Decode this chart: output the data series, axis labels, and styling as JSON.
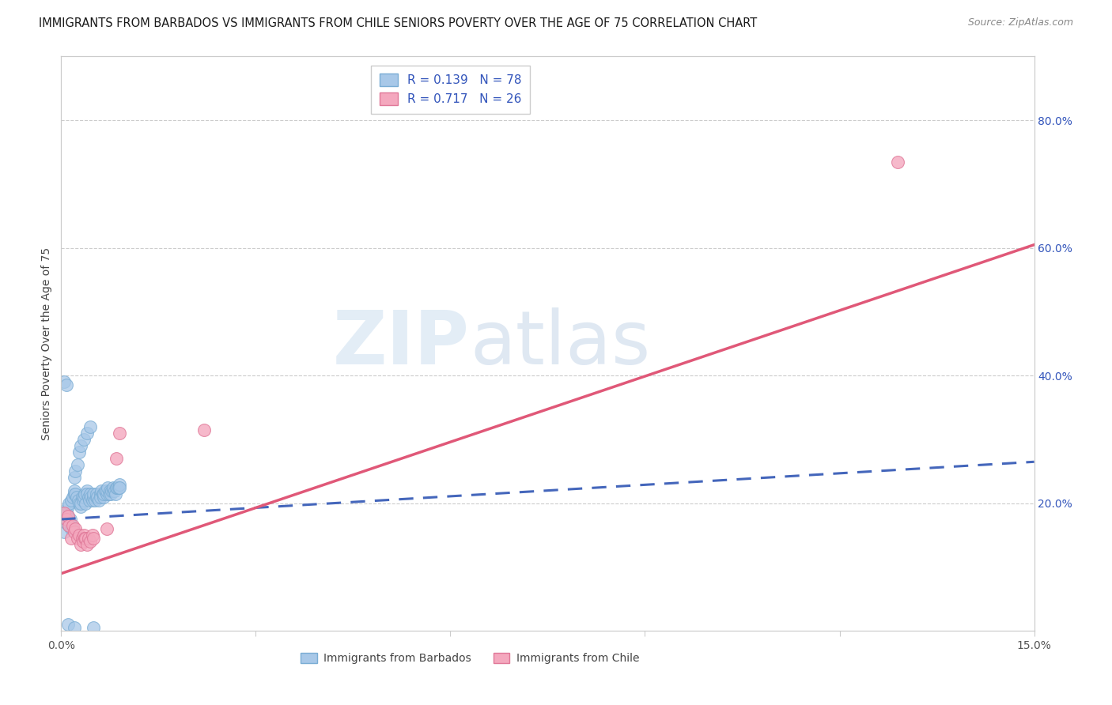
{
  "title": "IMMIGRANTS FROM BARBADOS VS IMMIGRANTS FROM CHILE SENIORS POVERTY OVER THE AGE OF 75 CORRELATION CHART",
  "source": "Source: ZipAtlas.com",
  "ylabel": "Seniors Poverty Over the Age of 75",
  "xlim": [
    0.0,
    0.15
  ],
  "ylim": [
    0.0,
    0.9
  ],
  "xtick_positions": [
    0.0,
    0.03,
    0.06,
    0.09,
    0.12,
    0.15
  ],
  "xtick_labels": [
    "0.0%",
    "",
    "",
    "",
    "",
    "15.0%"
  ],
  "right_yticks": [
    0.2,
    0.4,
    0.6,
    0.8
  ],
  "right_yticklabels": [
    "20.0%",
    "40.0%",
    "60.0%",
    "80.0%"
  ],
  "barbados_color": "#a8c8e8",
  "barbados_edge_color": "#7aadd4",
  "chile_color": "#f4a8be",
  "chile_edge_color": "#e07898",
  "barbados_R": 0.139,
  "barbados_N": 78,
  "chile_R": 0.717,
  "chile_N": 26,
  "legend_color": "#3355bb",
  "trend_barbados_color": "#4466bb",
  "trend_chile_color": "#e05878",
  "watermark_color": "#dde8f5",
  "title_fontsize": 10.5,
  "source_fontsize": 9,
  "tick_fontsize": 10,
  "legend_fontsize": 11,
  "ylabel_fontsize": 10,
  "barbados_trend_x0": 0.0,
  "barbados_trend_y0": 0.175,
  "barbados_trend_x1": 0.15,
  "barbados_trend_y1": 0.265,
  "chile_trend_x0": 0.0,
  "chile_trend_y0": 0.09,
  "chile_trend_x1": 0.15,
  "chile_trend_y1": 0.605,
  "barbados_scatter_x": [
    0.0008,
    0.001,
    0.0012,
    0.0015,
    0.0018,
    0.002,
    0.002,
    0.0022,
    0.0024,
    0.0026,
    0.0028,
    0.003,
    0.003,
    0.0032,
    0.0034,
    0.0035,
    0.0036,
    0.0038,
    0.004,
    0.004,
    0.0042,
    0.0044,
    0.0045,
    0.0046,
    0.0048,
    0.005,
    0.005,
    0.0052,
    0.0054,
    0.0055,
    0.0056,
    0.0058,
    0.006,
    0.006,
    0.0062,
    0.0064,
    0.0065,
    0.0066,
    0.0068,
    0.007,
    0.007,
    0.0072,
    0.0074,
    0.0075,
    0.0076,
    0.0078,
    0.008,
    0.008,
    0.0082,
    0.0084,
    0.0085,
    0.0086,
    0.0088,
    0.009,
    0.009,
    0.0005,
    0.0007,
    0.0009,
    0.001,
    0.001,
    0.0012,
    0.0014,
    0.0015,
    0.0016,
    0.0018,
    0.002,
    0.0022,
    0.0025,
    0.0028,
    0.003,
    0.0035,
    0.004,
    0.0045,
    0.005,
    0.001,
    0.002,
    0.0005,
    0.0008
  ],
  "barbados_scatter_y": [
    0.185,
    0.195,
    0.2,
    0.205,
    0.21,
    0.215,
    0.22,
    0.215,
    0.21,
    0.205,
    0.2,
    0.195,
    0.2,
    0.21,
    0.205,
    0.21,
    0.215,
    0.2,
    0.22,
    0.215,
    0.21,
    0.205,
    0.215,
    0.21,
    0.205,
    0.21,
    0.215,
    0.205,
    0.21,
    0.215,
    0.21,
    0.205,
    0.215,
    0.21,
    0.22,
    0.215,
    0.21,
    0.215,
    0.22,
    0.215,
    0.22,
    0.225,
    0.215,
    0.22,
    0.215,
    0.22,
    0.22,
    0.225,
    0.22,
    0.215,
    0.225,
    0.225,
    0.225,
    0.23,
    0.225,
    0.155,
    0.17,
    0.175,
    0.17,
    0.18,
    0.165,
    0.175,
    0.16,
    0.165,
    0.16,
    0.24,
    0.25,
    0.26,
    0.28,
    0.29,
    0.3,
    0.31,
    0.32,
    0.005,
    0.01,
    0.005,
    0.39,
    0.385
  ],
  "chile_scatter_x": [
    0.0005,
    0.0008,
    0.001,
    0.0012,
    0.0015,
    0.0018,
    0.002,
    0.0022,
    0.0025,
    0.0028,
    0.003,
    0.0032,
    0.0034,
    0.0035,
    0.0036,
    0.0038,
    0.004,
    0.0042,
    0.0045,
    0.0048,
    0.005,
    0.007,
    0.0085,
    0.009,
    0.022,
    0.129
  ],
  "chile_scatter_y": [
    0.185,
    0.175,
    0.18,
    0.165,
    0.145,
    0.165,
    0.155,
    0.16,
    0.145,
    0.15,
    0.135,
    0.145,
    0.14,
    0.15,
    0.145,
    0.145,
    0.135,
    0.145,
    0.14,
    0.15,
    0.145,
    0.16,
    0.27,
    0.31,
    0.315,
    0.735
  ]
}
